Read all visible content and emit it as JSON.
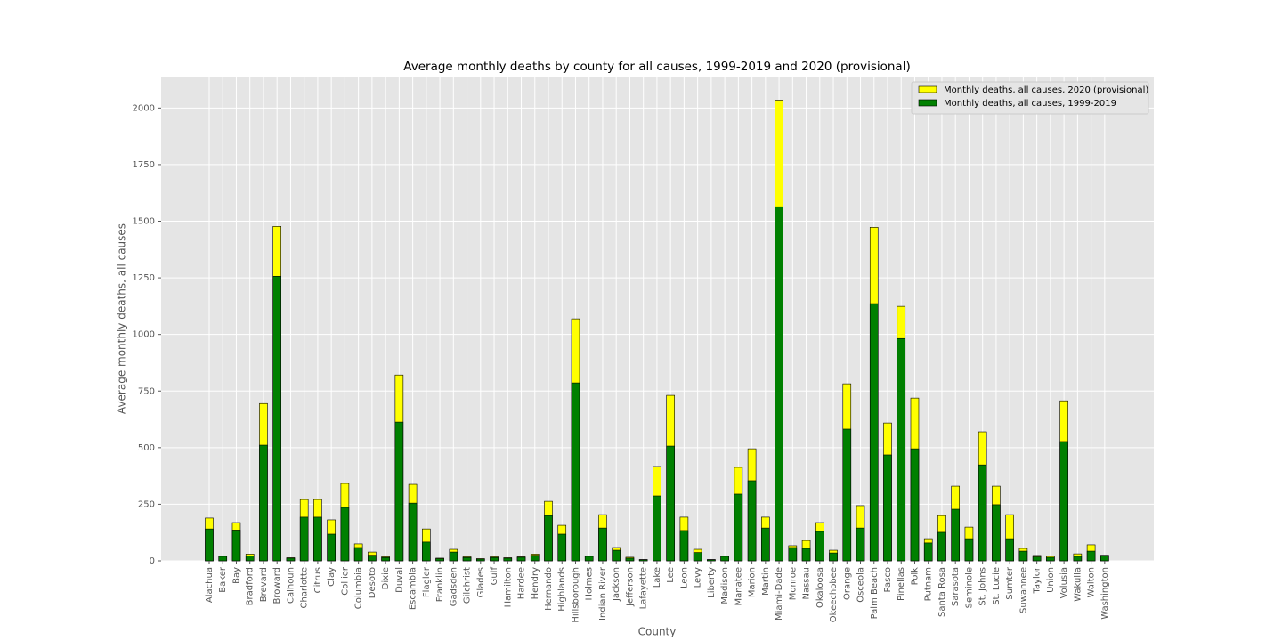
{
  "chart_data": {
    "type": "bar",
    "title": "Average monthly deaths by county for all causes, 1999-2019 and 2020 (provisional)",
    "x_label": "County",
    "y_label": "Average monthly deaths, all causes",
    "categories": [
      "Alachua",
      "Baker",
      "Bay",
      "Bradford",
      "Brevard",
      "Broward",
      "Calhoun",
      "Charlotte",
      "Citrus",
      "Clay",
      "Collier",
      "Columbia",
      "Desoto",
      "Dixie",
      "Duval",
      "Escambia",
      "Flagler",
      "Franklin",
      "Gadsden",
      "Gilchrist",
      "Glades",
      "Gulf",
      "Hamilton",
      "Hardee",
      "Hendry",
      "Hernando",
      "Highlands",
      "Hillsborough",
      "Holmes",
      "Indian River",
      "Jackson",
      "Jefferson",
      "Lafayette",
      "Lake",
      "Lee",
      "Leon",
      "Levy",
      "Liberty",
      "Madison",
      "Manatee",
      "Marion",
      "Martin",
      "Miami-Dade",
      "Monroe",
      "Nassau",
      "Okaloosa",
      "Okeechobee",
      "Orange",
      "Osceola",
      "Palm Beach",
      "Pasco",
      "Pinellas",
      "Polk",
      "Putnam",
      "Santa Rosa",
      "Sarasota",
      "Seminole",
      "St. Johns",
      "St. Lucie",
      "Sumter",
      "Suwannee",
      "Taylor",
      "Union",
      "Volusia",
      "Wakulla",
      "Walton",
      "Washington"
    ],
    "series": [
      {
        "name": "Monthly deaths, all causes, 2020 (provisional)",
        "color": "#ffff00",
        "values": [
          189,
          22,
          169,
          30,
          695,
          1477,
          14,
          271,
          271,
          181,
          342,
          75,
          39,
          18,
          821,
          338,
          141,
          12,
          51,
          18,
          10,
          18,
          14,
          18,
          30,
          263,
          157,
          1069,
          22,
          204,
          59,
          16,
          6,
          417,
          731,
          193,
          51,
          6,
          22,
          413,
          495,
          193,
          2035,
          67,
          90,
          169,
          47,
          782,
          244,
          1473,
          609,
          1124,
          719,
          98,
          200,
          330,
          149,
          570,
          330,
          204,
          55,
          24,
          21,
          707,
          31,
          71,
          24
        ]
      },
      {
        "name": "Monthly deaths, all causes, 1999-2019",
        "color": "#008000",
        "values": [
          141,
          20,
          136,
          22,
          511,
          1257,
          12,
          193,
          193,
          118,
          236,
          59,
          25,
          15,
          613,
          255,
          83,
          10,
          39,
          15,
          8,
          15,
          12,
          16,
          25,
          200,
          118,
          786,
          20,
          145,
          47,
          12,
          5,
          287,
          507,
          134,
          37,
          5,
          20,
          295,
          354,
          145,
          1564,
          59,
          55,
          130,
          35,
          582,
          145,
          1136,
          468,
          982,
          495,
          79,
          126,
          228,
          98,
          424,
          248,
          98,
          43,
          18,
          16,
          527,
          20,
          43,
          25
        ]
      }
    ],
    "ylim": [
      0,
      2135
    ],
    "yticks": [
      0,
      250,
      500,
      750,
      1000,
      1250,
      1500,
      1750,
      2000
    ],
    "grid": true,
    "legend": "upper right"
  }
}
